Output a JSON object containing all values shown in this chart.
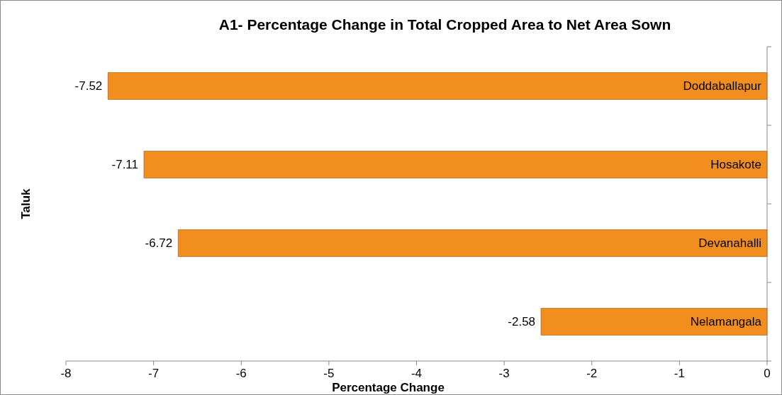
{
  "chart_data": {
    "type": "bar",
    "orientation": "horizontal",
    "title": "A1- Percentage  Change in Total Cropped Area to Net Area Sown",
    "xlabel": "Percentage Change",
    "ylabel": "Taluk",
    "categories": [
      "Doddaballapur",
      "Hosakote",
      "Devanahalli",
      "Nelamangala"
    ],
    "values": [
      -7.52,
      -7.11,
      -6.72,
      -2.58
    ],
    "color": "#f28e1e",
    "xlim": [
      -8,
      0
    ],
    "xticks": [
      -8,
      -7,
      -6,
      -5,
      -4,
      -3,
      -2,
      -1,
      0
    ],
    "data_labels": true
  }
}
